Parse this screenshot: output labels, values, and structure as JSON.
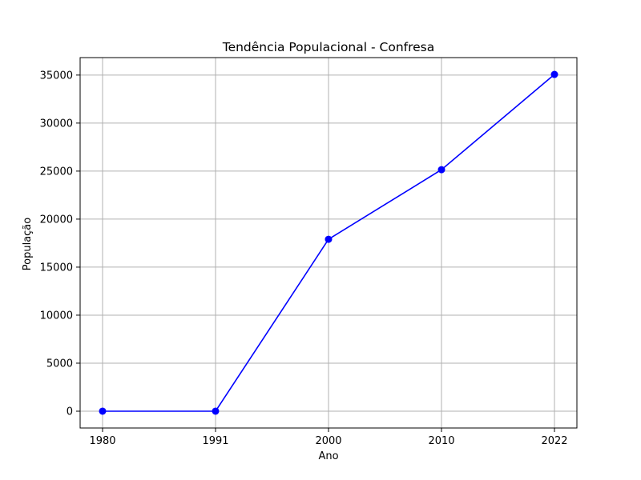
{
  "chart_data": {
    "type": "line",
    "title": "Tendência Populacional - Confresa",
    "xlabel": "Ano",
    "ylabel": "População",
    "categories": [
      "1980",
      "1991",
      "2000",
      "2010",
      "2022"
    ],
    "series": [
      {
        "values": [
          0,
          0,
          17900,
          25150,
          35070
        ]
      }
    ],
    "yticks": [
      0,
      5000,
      10000,
      15000,
      20000,
      25000,
      30000,
      35000
    ],
    "ylim": [
      -1750,
      36820
    ],
    "grid": true,
    "line_color": "#0000ff",
    "marker": "circle"
  }
}
